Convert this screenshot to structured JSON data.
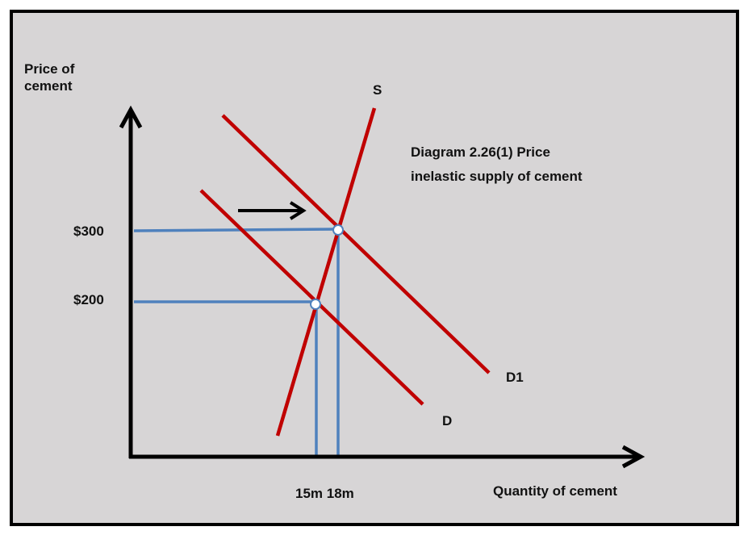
{
  "y_axis_label_line1": "Price of",
  "y_axis_label_line2": "cement",
  "x_axis_label": "Quantity of cement",
  "title_line1": "Diagram 2.26(1) Price",
  "title_line2": "inelastic supply of cement",
  "supply_label": "S",
  "demand_label": "D",
  "demand_shifted_label": "D1",
  "price_high": "$300",
  "price_low": "$200",
  "quantity_labels": "15m 18m",
  "colors": {
    "background": "#d7d5d6",
    "curves": "#c00000",
    "guides": "#4f81bd",
    "axes": "#000000"
  },
  "icons": [
    "shift-arrow-icon",
    "equilibrium-point-icon"
  ]
}
